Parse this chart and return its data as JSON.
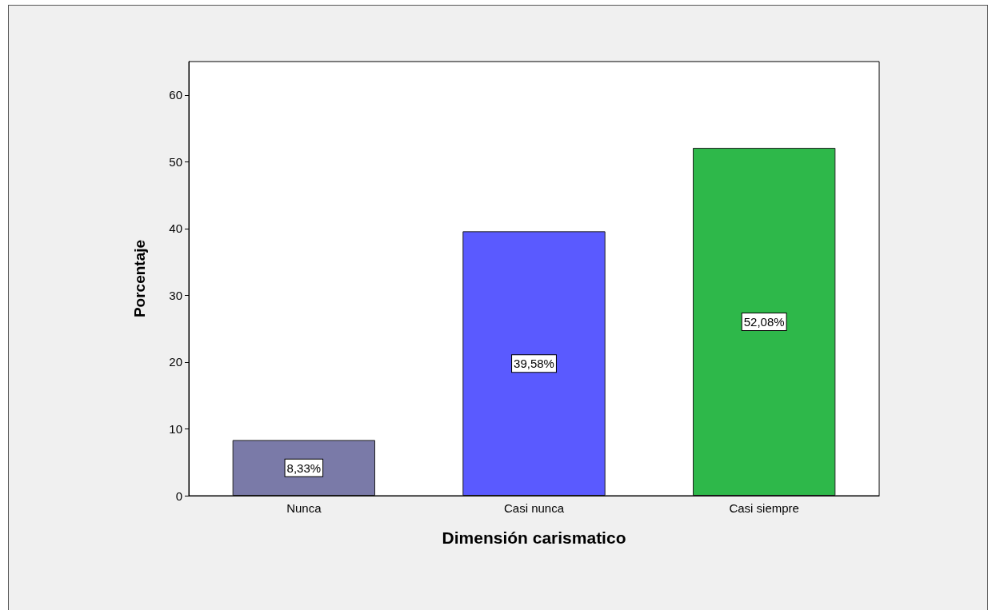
{
  "chart_data": {
    "type": "bar",
    "xlabel": "Dimensión carismatico",
    "ylabel": "Porcentaje",
    "categories": [
      "Nunca",
      "Casi nunca",
      "Casi siempre"
    ],
    "values": [
      8.33,
      39.58,
      52.08
    ],
    "colors": [
      "#7a7aa8",
      "#5a5aff",
      "#2eb84a"
    ],
    "value_labels": [
      "8,33%",
      "39,58%",
      "52,08%"
    ],
    "ylim": [
      0,
      65
    ],
    "yticks": [
      0,
      10,
      20,
      30,
      40,
      50,
      60
    ],
    "grid": false
  }
}
